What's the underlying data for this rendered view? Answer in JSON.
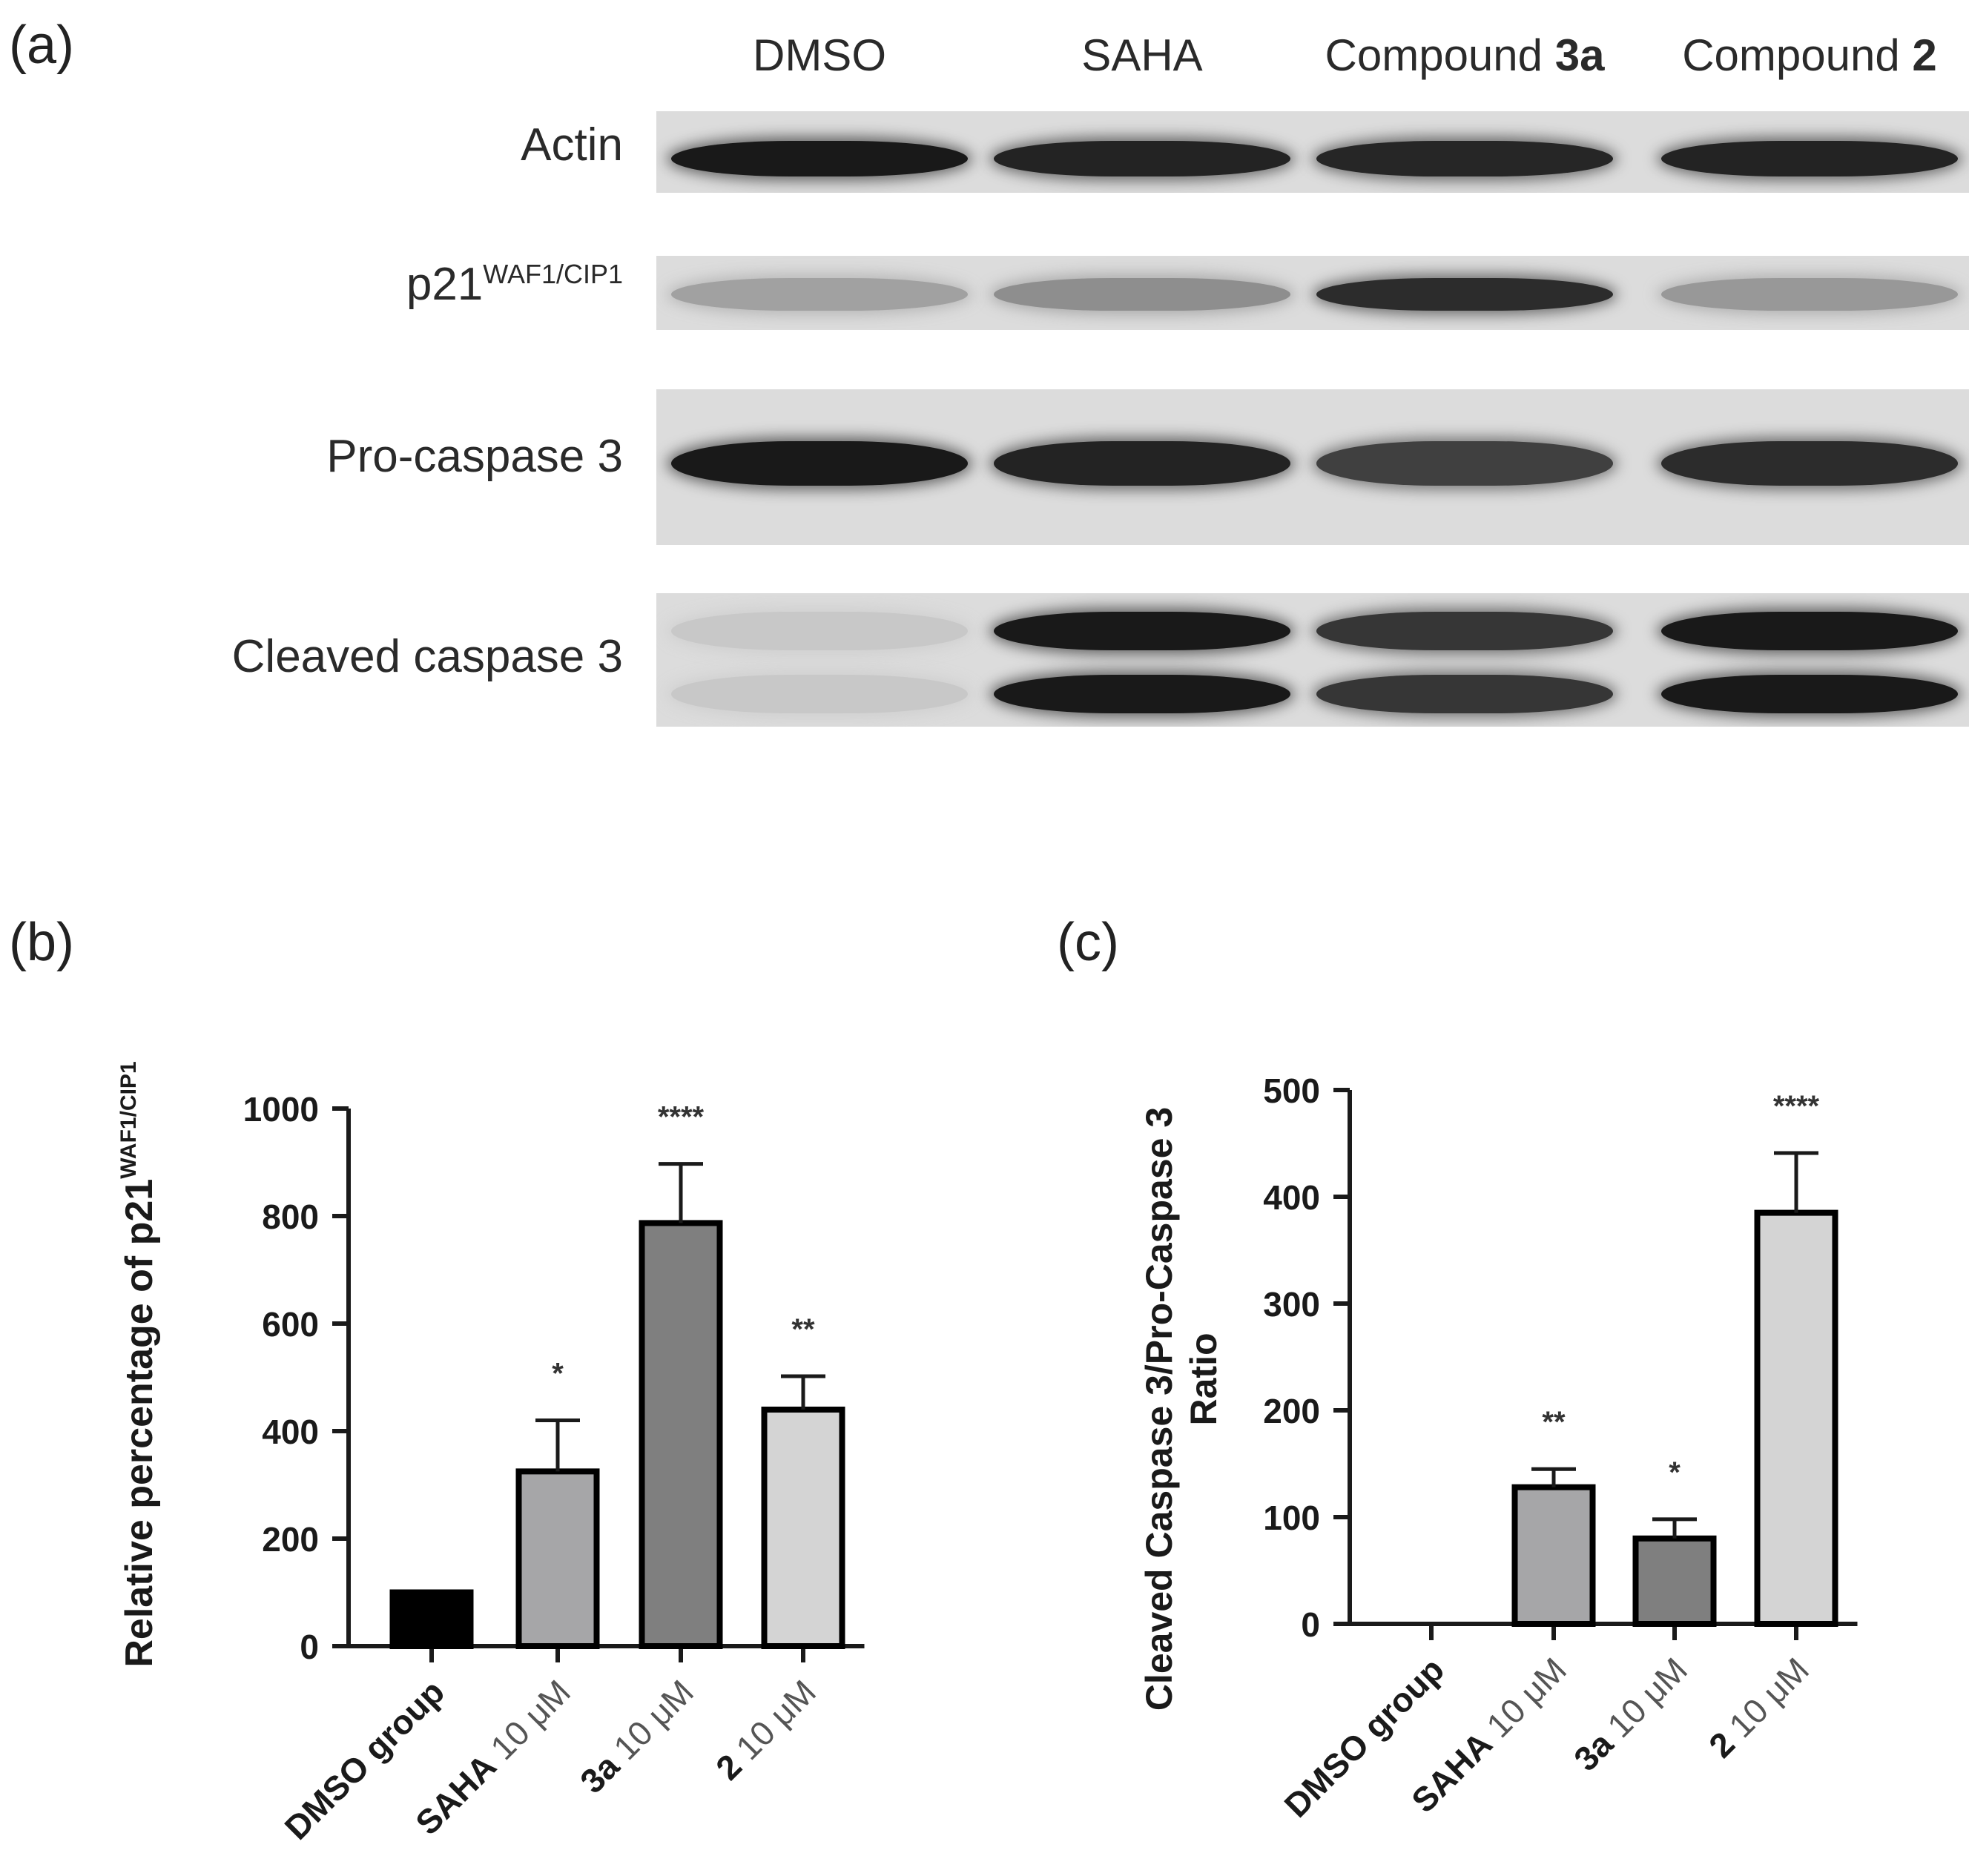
{
  "panel_a": {
    "letter": "(a)",
    "lanes": [
      {
        "plain": "DMSO",
        "bold": ""
      },
      {
        "plain": "SAHA",
        "bold": ""
      },
      {
        "plain": "Compound ",
        "bold": "3a"
      },
      {
        "plain": "Compound ",
        "bold": "2"
      }
    ],
    "blots": [
      {
        "label": "Actin",
        "sup": "",
        "intensity": [
          0.95,
          0.9,
          0.88,
          0.9
        ]
      },
      {
        "label": "p21",
        "sup": "WAF1/CIP1",
        "intensity": [
          0.25,
          0.35,
          0.85,
          0.3
        ]
      },
      {
        "label": "Pro-caspase 3",
        "sup": "",
        "intensity": [
          0.95,
          0.9,
          0.75,
          0.85
        ]
      },
      {
        "label": "Cleaved caspase 3",
        "sup": "",
        "intensity": [
          0.05,
          0.95,
          0.8,
          0.95
        ]
      }
    ]
  },
  "panel_b": {
    "letter": "(b)"
  },
  "panel_c": {
    "letter": "(c)"
  },
  "chart_data": [
    {
      "type": "bar",
      "categories": [
        {
          "bold": "DMSO group",
          "plain": ""
        },
        {
          "bold": "SAHA",
          "plain": " 10 μM"
        },
        {
          "bold": "3a",
          "plain": " 10 μM"
        },
        {
          "bold": "2",
          "plain": " 10 μM"
        }
      ],
      "values": [
        100,
        325,
        787,
        440
      ],
      "errors": [
        0,
        95,
        110,
        62
      ],
      "significance": [
        "",
        "*",
        "****",
        "**"
      ],
      "colors": [
        "#000000",
        "#a6a6a8",
        "#7f7f7f",
        "#d4d4d4"
      ],
      "ylabel": "Relative percentage of p21",
      "ylabel_sup": "WAF1/CIP1",
      "ylim": [
        0,
        1000
      ],
      "yticks": [
        0,
        200,
        400,
        600,
        800,
        1000
      ]
    },
    {
      "type": "bar",
      "categories": [
        {
          "bold": "DMSO group",
          "plain": ""
        },
        {
          "bold": "SAHA",
          "plain": " 10 μM"
        },
        {
          "bold": "3a",
          "plain": " 10 μM"
        },
        {
          "bold": "2",
          "plain": " 10 μM"
        }
      ],
      "values": [
        0,
        128,
        80,
        385
      ],
      "errors": [
        0,
        17,
        18,
        56
      ],
      "significance": [
        "",
        "**",
        "*",
        "****"
      ],
      "colors": [
        "#000000",
        "#a6a6a8",
        "#7f7f7f",
        "#d4d4d4"
      ],
      "ylabel": "Cleaved Caspase 3/Pro-Caspase 3",
      "ylabel2": "Ratio",
      "ylim": [
        0,
        500
      ],
      "yticks": [
        0,
        100,
        200,
        300,
        400,
        500
      ]
    }
  ]
}
